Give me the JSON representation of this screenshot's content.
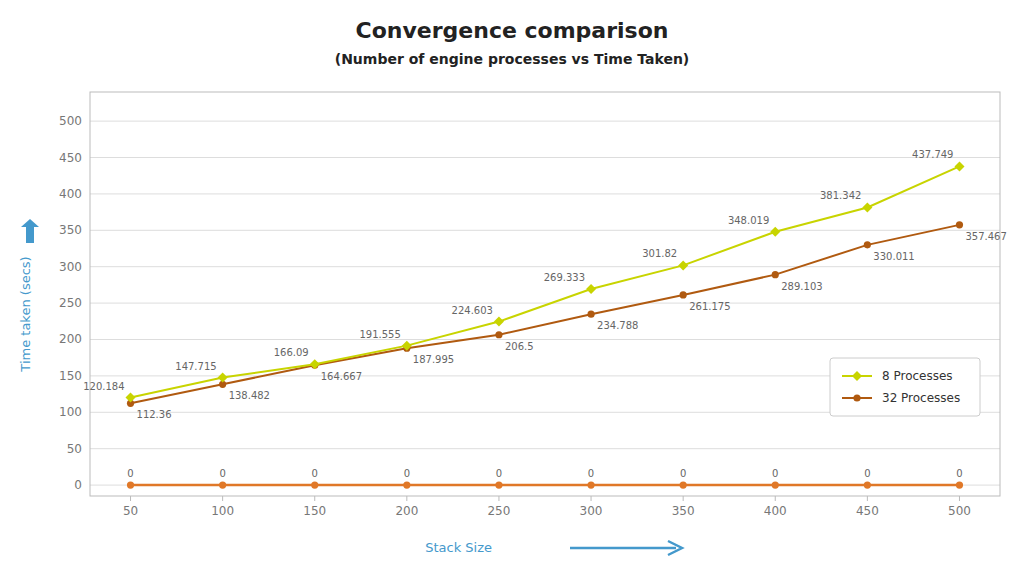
{
  "chart_data": {
    "type": "line",
    "title": "Convergence comparison",
    "subtitle": "(Number of engine processes vs Time Taken)",
    "x_label": "Stack Size",
    "y_label": "Time taken (secs)",
    "x": [
      50,
      100,
      150,
      200,
      250,
      300,
      350,
      400,
      450,
      500
    ],
    "series": [
      {
        "name": "8 Processes",
        "color": "#c8d400",
        "marker": "diamond",
        "values": [
          120.184,
          147.715,
          166.09,
          191.555,
          224.603,
          269.333,
          301.82,
          348.019,
          381.342,
          437.749
        ]
      },
      {
        "name": "32 Processes",
        "color": "#b05a10",
        "marker": "circle",
        "values": [
          112.36,
          138.482,
          164.667,
          187.995,
          206.5,
          234.788,
          261.175,
          289.103,
          330.011,
          357.467
        ]
      },
      {
        "color": "#e07828",
        "marker": "circle",
        "values": [
          0,
          0,
          0,
          0,
          0,
          0,
          0,
          0,
          0,
          0
        ]
      }
    ],
    "xlim": [
      28,
      522
    ],
    "ylim": [
      -15,
      540
    ],
    "xticks": [
      50,
      100,
      150,
      200,
      250,
      300,
      350,
      400,
      450,
      500
    ],
    "yticks": [
      0,
      50,
      100,
      150,
      200,
      250,
      300,
      350,
      400,
      450,
      500
    ],
    "grid": true,
    "legend": "lower right",
    "data_labels": true
  }
}
